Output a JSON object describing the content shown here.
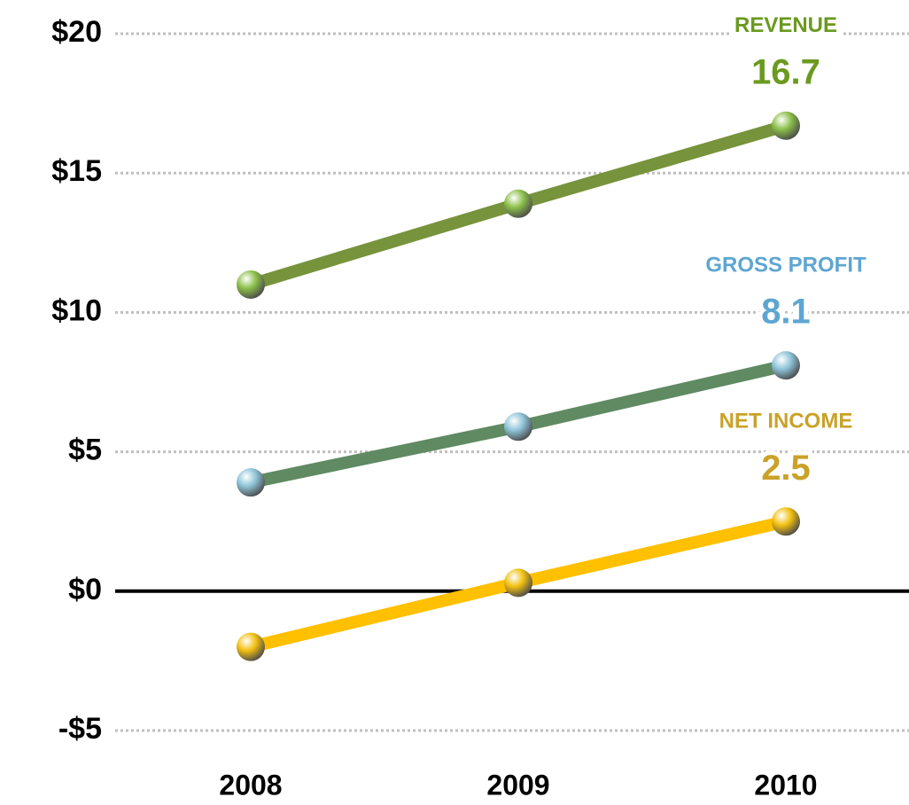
{
  "chart_data": {
    "type": "line",
    "categories": [
      "2008",
      "2009",
      "2010"
    ],
    "series": [
      {
        "name": "REVENUE",
        "color": "#77933c",
        "marker_color": "#8cc04a",
        "label_color": "#6a9a1f",
        "values": [
          11.0,
          13.9,
          16.7
        ]
      },
      {
        "name": "GROSS PROFIT",
        "color": "#5f8a62",
        "marker_color": "#8ec4d8",
        "label_color": "#5ea6d2",
        "values": [
          3.9,
          5.9,
          8.1
        ]
      },
      {
        "name": "NET INCOME",
        "color": "#ffc000",
        "marker_color": "#f2c010",
        "label_color": "#c9a227",
        "values": [
          -2.0,
          0.3,
          2.5
        ]
      }
    ],
    "ylim": [
      -5,
      20
    ],
    "yticks": [
      {
        "value": -5,
        "label": "-$5"
      },
      {
        "value": 0,
        "label": "$0"
      },
      {
        "value": 5,
        "label": "$5"
      },
      {
        "value": 10,
        "label": "$10"
      },
      {
        "value": 15,
        "label": "$15"
      },
      {
        "value": 20,
        "label": "$20"
      }
    ],
    "grid": true
  }
}
